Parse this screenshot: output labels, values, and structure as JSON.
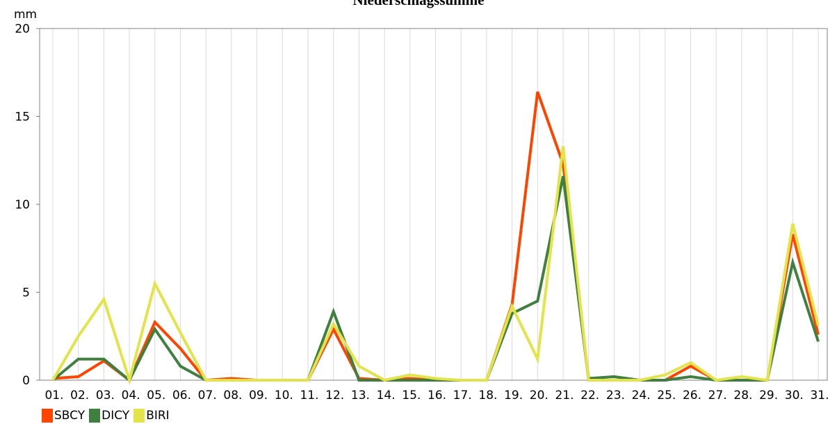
{
  "chart_data": {
    "type": "line",
    "title": "Niederschlagssumme",
    "ylabel": "mm",
    "xlabel": "",
    "ylim": [
      0,
      20
    ],
    "yticks": [
      0,
      5,
      10,
      15,
      20
    ],
    "grid": "vertical",
    "legend_position": "bottom-left",
    "categories": [
      "01.",
      "02.",
      "03.",
      "04.",
      "05.",
      "06.",
      "07.",
      "08.",
      "09.",
      "10.",
      "11.",
      "12.",
      "13.",
      "14.",
      "15.",
      "16.",
      "17.",
      "18.",
      "19.",
      "20.",
      "21.",
      "22.",
      "23.",
      "24.",
      "25.",
      "26.",
      "27.",
      "28.",
      "29.",
      "30.",
      "31."
    ],
    "series": [
      {
        "name": "SBCY",
        "color": "#ff4400",
        "values": [
          0.1,
          0.2,
          1.1,
          0.0,
          3.3,
          1.8,
          0.0,
          0.1,
          0.0,
          0.0,
          0.0,
          2.9,
          0.1,
          0.0,
          0.1,
          0.0,
          0.0,
          0.0,
          4.3,
          16.4,
          12.3,
          0.0,
          0.0,
          0.0,
          0.0,
          0.8,
          0.0,
          0.0,
          0.0,
          8.3,
          2.6
        ]
      },
      {
        "name": "DICY",
        "color": "#3f7f3f",
        "values": [
          0.0,
          1.2,
          1.2,
          0.0,
          2.9,
          0.8,
          0.0,
          0.0,
          0.0,
          0.0,
          0.0,
          3.9,
          0.0,
          0.0,
          0.0,
          0.0,
          0.0,
          0.0,
          3.8,
          4.5,
          11.6,
          0.1,
          0.2,
          0.0,
          0.0,
          0.2,
          0.0,
          0.0,
          0.0,
          6.7,
          2.2
        ]
      },
      {
        "name": "BIRI",
        "color": "#e3e34a",
        "values": [
          0.0,
          2.5,
          4.6,
          0.0,
          5.5,
          2.7,
          0.0,
          0.0,
          0.0,
          0.0,
          0.0,
          3.2,
          0.8,
          0.0,
          0.3,
          0.1,
          0.0,
          0.0,
          4.2,
          1.2,
          13.3,
          0.0,
          0.0,
          0.0,
          0.3,
          1.0,
          0.0,
          0.2,
          0.0,
          8.9,
          3.1
        ]
      }
    ]
  }
}
